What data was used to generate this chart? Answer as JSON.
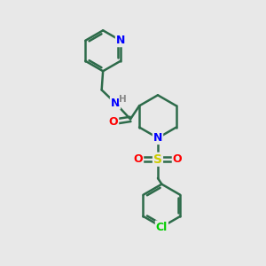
{
  "bg_color": "#e8e8e8",
  "bond_color": "#2d6b4a",
  "bond_width": 1.8,
  "atom_colors": {
    "N": "#0000ff",
    "O": "#ff0000",
    "S": "#cccc00",
    "Cl": "#00cc00",
    "H": "#888888",
    "C": "#2d6b4a"
  },
  "font_size_atom": 9,
  "font_size_small": 7.5
}
